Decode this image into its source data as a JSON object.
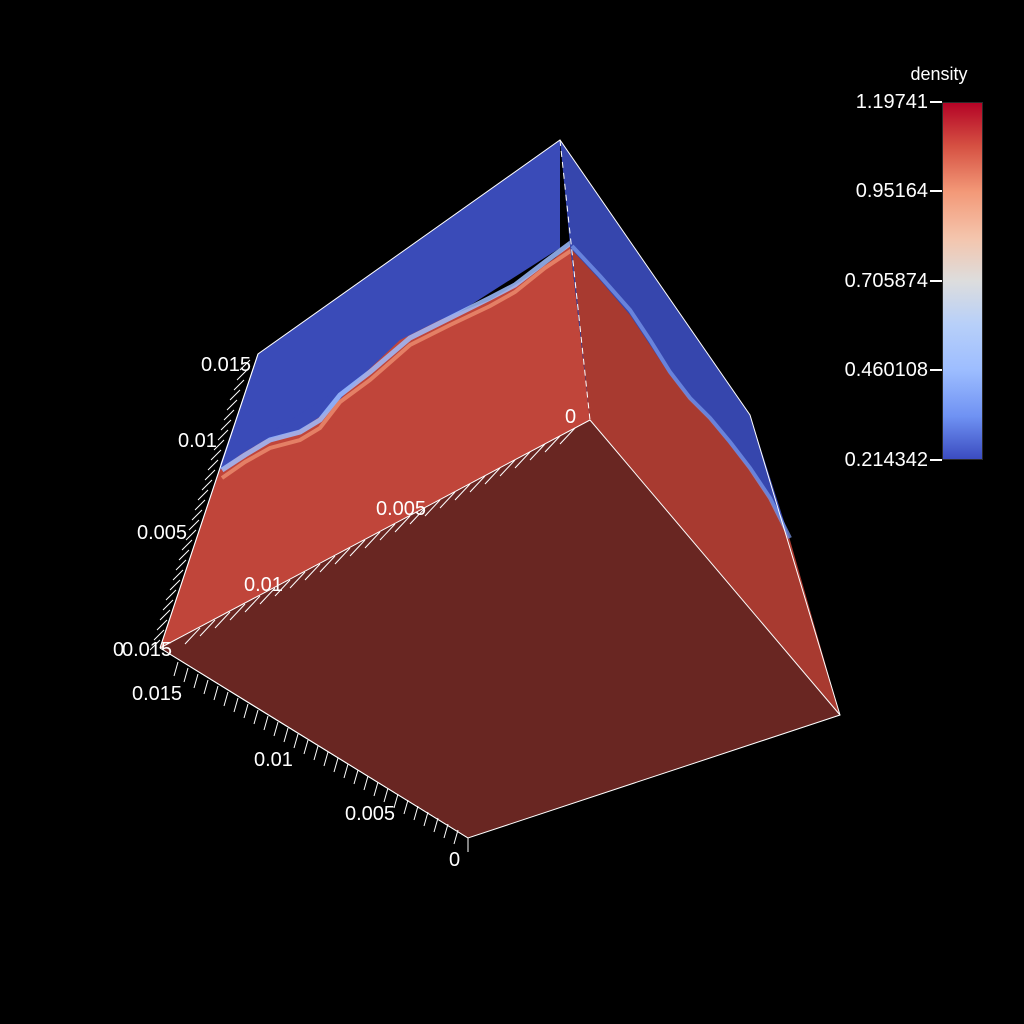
{
  "legend": {
    "title": "density",
    "ticks": [
      "1.19741",
      "0.95164",
      "0.705874",
      "0.460108",
      "0.214342"
    ],
    "colors": [
      "#b40426",
      "#f39978",
      "#dddddd",
      "#9dbdff",
      "#3b4cc0"
    ]
  },
  "axes": {
    "vertical_axis_labels": [
      "0",
      "0.005",
      "0.01",
      "0.015"
    ],
    "depth_axis_labels": [
      "0",
      "0.005",
      "0.01",
      "0.015"
    ],
    "bottom_axis_labels": [
      "0",
      "0.005",
      "0.01",
      "0.015"
    ]
  },
  "scene": {
    "top_color": "#3a4bb8",
    "side_color": "#c0453a",
    "right_side_color": "#a83a30",
    "bottom_color": "#692622",
    "edge_color": "#ffffff"
  }
}
